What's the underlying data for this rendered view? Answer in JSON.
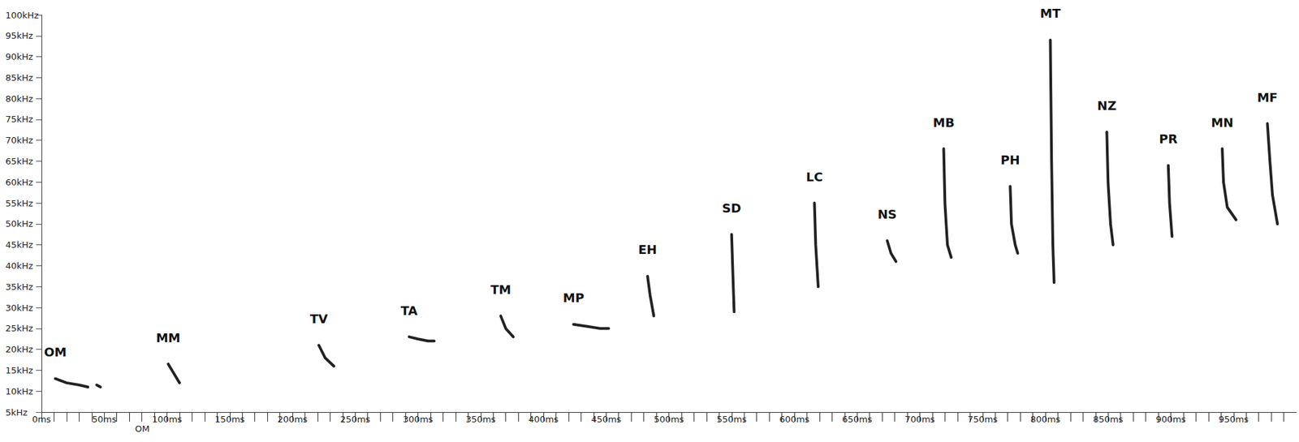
{
  "chart_data": {
    "type": "line",
    "color": "#222222",
    "grid": false,
    "xlim": [
      0,
      1000
    ],
    "ylim": [
      5,
      100
    ],
    "xticks": [
      {
        "value": 0,
        "label": "0ms"
      },
      {
        "value": 50,
        "label": "50ms"
      },
      {
        "value": 100,
        "label": "100ms"
      },
      {
        "value": 150,
        "label": "150ms"
      },
      {
        "value": 200,
        "label": "200ms"
      },
      {
        "value": 250,
        "label": "250ms"
      },
      {
        "value": 300,
        "label": "300ms"
      },
      {
        "value": 350,
        "label": "350ms"
      },
      {
        "value": 400,
        "label": "400ms"
      },
      {
        "value": 450,
        "label": "450ms"
      },
      {
        "value": 500,
        "label": "500ms"
      },
      {
        "value": 550,
        "label": "550ms"
      },
      {
        "value": 600,
        "label": "600ms"
      },
      {
        "value": 650,
        "label": "650ms"
      },
      {
        "value": 700,
        "label": "700ms"
      },
      {
        "value": 750,
        "label": "750ms"
      },
      {
        "value": 800,
        "label": "800ms"
      },
      {
        "value": 850,
        "label": "850ms"
      },
      {
        "value": 900,
        "label": "900ms"
      },
      {
        "value": 950,
        "label": "950ms"
      }
    ],
    "yticks": [
      {
        "value": 5,
        "label": "5kHz"
      },
      {
        "value": 10,
        "label": "10kHz"
      },
      {
        "value": 15,
        "label": "15kHz"
      },
      {
        "value": 20,
        "label": "20kHz"
      },
      {
        "value": 25,
        "label": "25kHz"
      },
      {
        "value": 30,
        "label": "30kHz"
      },
      {
        "value": 35,
        "label": "35kHz"
      },
      {
        "value": 40,
        "label": "40kHz"
      },
      {
        "value": 45,
        "label": "45kHz"
      },
      {
        "value": 50,
        "label": "50kHz"
      },
      {
        "value": 55,
        "label": "55kHz"
      },
      {
        "value": 60,
        "label": "60kHz"
      },
      {
        "value": 65,
        "label": "65kHz"
      },
      {
        "value": 70,
        "label": "70kHz"
      },
      {
        "value": 75,
        "label": "75kHz"
      },
      {
        "value": 80,
        "label": "80kHz"
      },
      {
        "value": 85,
        "label": "85kHz"
      },
      {
        "value": 90,
        "label": "90kHz"
      },
      {
        "value": 95,
        "label": "95kHz"
      },
      {
        "value": 100,
        "label": "100kHz"
      }
    ],
    "annotations": [
      {
        "text": "OM",
        "x": 80
      }
    ],
    "series": [
      {
        "name": "OM",
        "values": [
          [
            11,
            13
          ],
          [
            20,
            12
          ],
          [
            30,
            11.5
          ],
          [
            37,
            11
          ],
          null,
          [
            44,
            11.5
          ],
          [
            47,
            11
          ]
        ]
      },
      {
        "name": "MM",
        "values": [
          [
            101,
            16.5
          ],
          [
            105,
            14.5
          ],
          [
            110,
            12
          ]
        ]
      },
      {
        "name": "TV",
        "values": [
          [
            221,
            21
          ],
          [
            226,
            18
          ],
          [
            233,
            16
          ]
        ]
      },
      {
        "name": "TA",
        "values": [
          [
            293,
            23
          ],
          [
            300,
            22.5
          ],
          [
            308,
            22
          ],
          [
            313,
            22
          ]
        ]
      },
      {
        "name": "TM",
        "values": [
          [
            366,
            28
          ],
          [
            370,
            25
          ],
          [
            376,
            23
          ]
        ]
      },
      {
        "name": "MP",
        "values": [
          [
            424,
            26
          ],
          [
            435,
            25.5
          ],
          [
            445,
            25
          ],
          [
            452,
            25
          ]
        ]
      },
      {
        "name": "EH",
        "values": [
          [
            483,
            37.5
          ],
          [
            485,
            33
          ],
          [
            488,
            28
          ]
        ]
      },
      {
        "name": "SD",
        "values": [
          [
            550,
            47.5
          ],
          [
            551,
            38
          ],
          [
            552,
            29
          ]
        ]
      },
      {
        "name": "LC",
        "values": [
          [
            616,
            55
          ],
          [
            617,
            45
          ],
          [
            619,
            35
          ]
        ]
      },
      {
        "name": "NS",
        "values": [
          [
            674,
            46
          ],
          [
            677,
            43
          ],
          [
            681,
            41
          ]
        ]
      },
      {
        "name": "MB",
        "values": [
          [
            719,
            68
          ],
          [
            720,
            55
          ],
          [
            722,
            45
          ],
          [
            725,
            42
          ]
        ]
      },
      {
        "name": "PH",
        "values": [
          [
            772,
            59
          ],
          [
            773,
            50
          ],
          [
            776,
            45
          ],
          [
            778,
            43
          ]
        ]
      },
      {
        "name": "MT",
        "values": [
          [
            804,
            94
          ],
          [
            805,
            65
          ],
          [
            806,
            45
          ],
          [
            807,
            36
          ]
        ]
      },
      {
        "name": "NZ",
        "values": [
          [
            849,
            72
          ],
          [
            850,
            60
          ],
          [
            852,
            50
          ],
          [
            854,
            45
          ]
        ]
      },
      {
        "name": "PR",
        "values": [
          [
            898,
            64
          ],
          [
            899,
            55
          ],
          [
            901,
            47
          ]
        ]
      },
      {
        "name": "MN",
        "values": [
          [
            941,
            68
          ],
          [
            942,
            60
          ],
          [
            945,
            54
          ],
          [
            952,
            51
          ]
        ]
      },
      {
        "name": "MF",
        "values": [
          [
            977,
            74
          ],
          [
            979,
            65
          ],
          [
            981,
            57
          ],
          [
            985,
            50
          ]
        ]
      }
    ]
  }
}
